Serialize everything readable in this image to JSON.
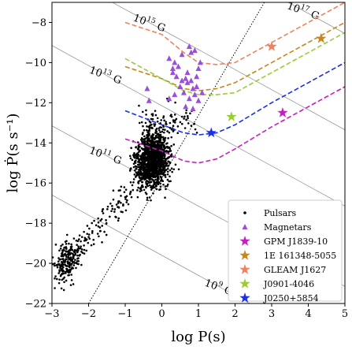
{
  "chart_data": {
    "type": "scatter",
    "title": "",
    "xlabel": "log P(s)",
    "ylabel": "log Ṗ(s s⁻¹)",
    "xlim": [
      -3,
      5
    ],
    "ylim": [
      -22,
      -7
    ],
    "xticks": [
      "−3",
      "−2",
      "−1",
      "0",
      "1",
      "2",
      "3",
      "4",
      "5"
    ],
    "yticks": [
      "−22",
      "−20",
      "−18",
      "−16",
      "−14",
      "−12",
      "−10",
      "−8"
    ],
    "grid": false,
    "legend_position": "lower-right",
    "b_field_lines": [
      {
        "label_base": "10",
        "label_exp": "9",
        "label_unit": "G",
        "label_x": 1.15,
        "label_y": -21.1
      },
      {
        "label_base": "10",
        "label_exp": "11",
        "label_unit": "G",
        "label_x": -2.0,
        "label_y": -14.5
      },
      {
        "label_base": "10",
        "label_exp": "13",
        "label_unit": "G",
        "label_x": -2.0,
        "label_y": -10.5
      },
      {
        "label_base": "10",
        "label_exp": "15",
        "label_unit": "G",
        "label_x": -0.8,
        "label_y": -7.9
      },
      {
        "label_base": "10",
        "label_exp": "17",
        "label_unit": "G",
        "label_x": 3.4,
        "label_y": -7.3
      }
    ],
    "death_line": {
      "style": "dotted",
      "x": [
        -2.0,
        2.8
      ],
      "y": [
        -22,
        -7
      ]
    },
    "series": [
      {
        "name": "Pulsars",
        "marker": "dot",
        "color": "#000000"
      },
      {
        "name": "Magnetars",
        "marker": "triangle",
        "color": "#9b4fd8",
        "points": [
          [
            0.2,
            -9.8
          ],
          [
            0.3,
            -10.3
          ],
          [
            0.35,
            -10.0
          ],
          [
            0.55,
            -9.6
          ],
          [
            0.7,
            -10.5
          ],
          [
            0.75,
            -9.2
          ],
          [
            0.8,
            -9.5
          ],
          [
            0.9,
            -9.4
          ],
          [
            1.0,
            -10.3
          ],
          [
            1.05,
            -10.0
          ],
          [
            0.4,
            -10.7
          ],
          [
            0.55,
            -10.9
          ],
          [
            0.65,
            -10.8
          ],
          [
            0.7,
            -11.0
          ],
          [
            0.8,
            -10.9
          ],
          [
            0.85,
            -11.3
          ],
          [
            0.9,
            -11.6
          ],
          [
            0.95,
            -11.2
          ],
          [
            1.1,
            -11.5
          ],
          [
            0.6,
            -11.5
          ],
          [
            0.75,
            -11.8
          ],
          [
            0.85,
            -12.3
          ],
          [
            -0.4,
            -11.3
          ],
          [
            -0.35,
            -11.9
          ],
          [
            0.3,
            -10.5
          ],
          [
            0.45,
            -10.2
          ],
          [
            0.95,
            -10.7
          ],
          [
            0.65,
            -12.2
          ],
          [
            0.35,
            -11.6
          ],
          [
            0.5,
            -11.2
          ],
          [
            1.0,
            -11.9
          ],
          [
            0.2,
            -11.8
          ]
        ]
      },
      {
        "name": "GPM J1839-10",
        "marker": "star",
        "color": "#c71ec1",
        "x": 3.3,
        "y": -12.5,
        "track": {
          "x": [
            -1.0,
            0.0,
            0.6,
            1.0,
            1.5,
            2.0,
            3.0,
            4.0,
            5.0
          ],
          "y": [
            -13.8,
            -14.4,
            -14.9,
            -15.0,
            -14.8,
            -14.3,
            -13.2,
            -12.2,
            -11.2
          ]
        }
      },
      {
        "name": "1E 161348-5055",
        "marker": "star",
        "color": "#c7861e",
        "x": 4.35,
        "y": -8.8,
        "track": {
          "x": [
            -1.0,
            0.0,
            0.6,
            1.0,
            1.5,
            2.0,
            3.0,
            4.0,
            5.0
          ],
          "y": [
            -10.2,
            -10.8,
            -11.3,
            -11.4,
            -11.3,
            -11.0,
            -10.0,
            -9.0,
            -8.0
          ]
        }
      },
      {
        "name": "GLEAM J1627",
        "marker": "star",
        "color": "#f08060",
        "x": 3.0,
        "y": -9.2,
        "track": {
          "x": [
            -1.0,
            0.0,
            0.6,
            1.0,
            1.5,
            2.0,
            3.0,
            4.0,
            5.0
          ],
          "y": [
            -8.0,
            -8.6,
            -9.5,
            -10.0,
            -10.1,
            -10.0,
            -9.0,
            -8.0,
            -7.0
          ]
        }
      },
      {
        "name": "J0901-4046",
        "marker": "star",
        "color": "#9acd32",
        "x": 1.9,
        "y": -12.7,
        "track": {
          "x": [
            -1.0,
            0.0,
            0.6,
            1.0,
            1.5,
            2.0,
            3.0,
            4.0,
            5.0
          ],
          "y": [
            -9.8,
            -10.8,
            -11.4,
            -11.6,
            -11.6,
            -11.5,
            -10.5,
            -9.5,
            -8.5
          ]
        }
      },
      {
        "name": "J0250+5854",
        "marker": "star",
        "color": "#1a2fe6",
        "x": 1.35,
        "y": -13.5,
        "track": {
          "x": [
            -1.0,
            0.0,
            0.6,
            1.0,
            1.5,
            2.0,
            3.0,
            4.0,
            5.0
          ],
          "y": [
            -12.4,
            -13.1,
            -13.5,
            -13.6,
            -13.5,
            -13.1,
            -12.0,
            -11.0,
            -10.0
          ]
        }
      }
    ]
  }
}
